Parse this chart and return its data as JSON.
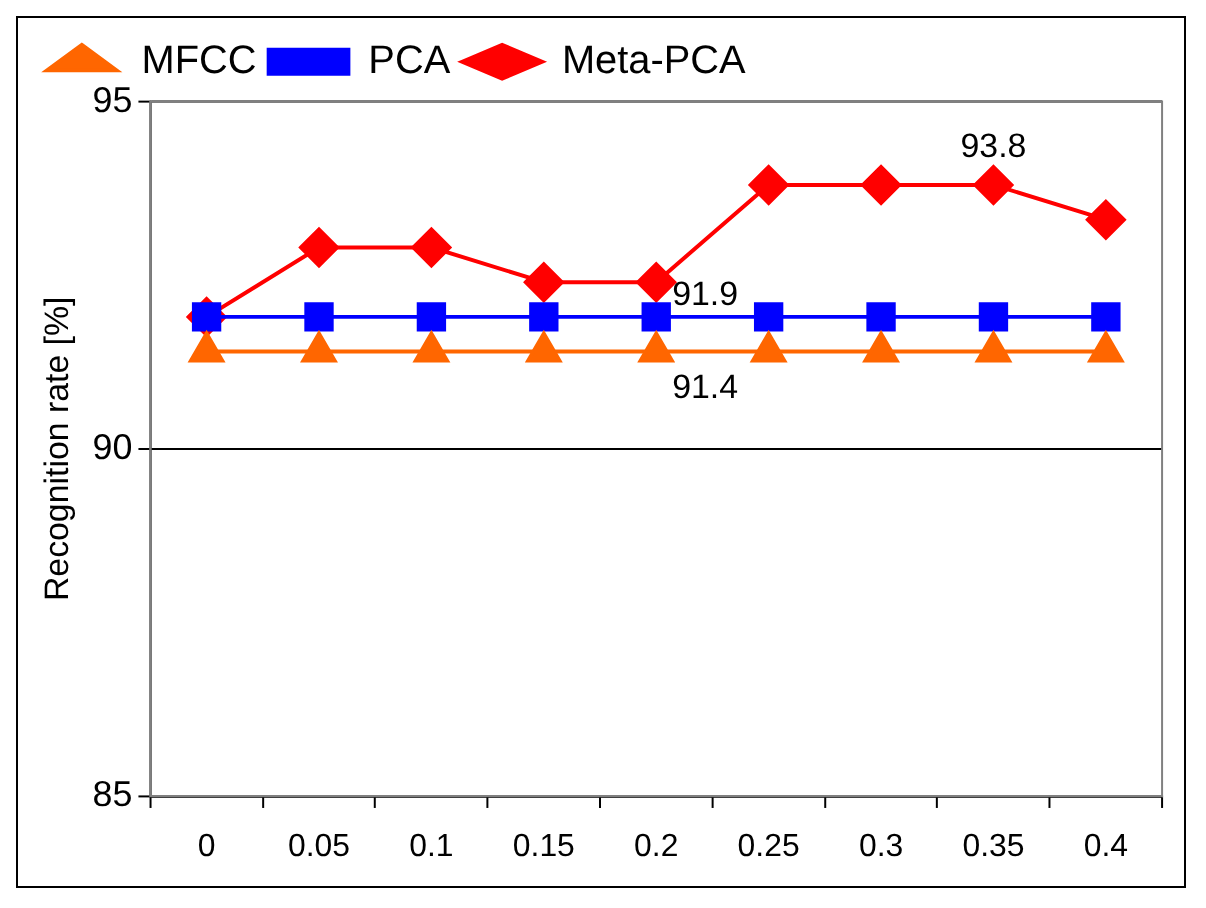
{
  "chart_data": {
    "type": "line",
    "ylabel": "Recognition rate [%]",
    "categories": [
      "0",
      "0.05",
      "0.1",
      "0.15",
      "0.2",
      "0.25",
      "0.3",
      "0.35",
      "0.4"
    ],
    "series": [
      {
        "name": "Meta-PCA",
        "color": "#ff0000",
        "marker": "diamond",
        "values": [
          91.9,
          92.9,
          92.9,
          92.4,
          92.4,
          93.8,
          93.8,
          93.8,
          93.3
        ]
      },
      {
        "name": "PCA",
        "color": "#0000ff",
        "marker": "square",
        "values": [
          91.9,
          91.9,
          91.9,
          91.9,
          91.9,
          91.9,
          91.9,
          91.9,
          91.9
        ]
      },
      {
        "name": "MFCC",
        "color": "#ff6600",
        "marker": "triangle",
        "values": [
          91.4,
          91.4,
          91.4,
          91.4,
          91.4,
          91.4,
          91.4,
          91.4,
          91.4
        ]
      }
    ],
    "ylim": [
      85,
      95
    ],
    "yticks": [
      85,
      90,
      95
    ],
    "grid": "y",
    "legend": "top left",
    "line_style": "solid",
    "annotations": [
      {
        "text": "93.8",
        "x": "0.35",
        "y": 93.8
      },
      {
        "text": "91.9",
        "x": "0.2",
        "y": 91.9
      },
      {
        "text": "91.4",
        "x": "0.2",
        "y": 91.4
      }
    ]
  }
}
